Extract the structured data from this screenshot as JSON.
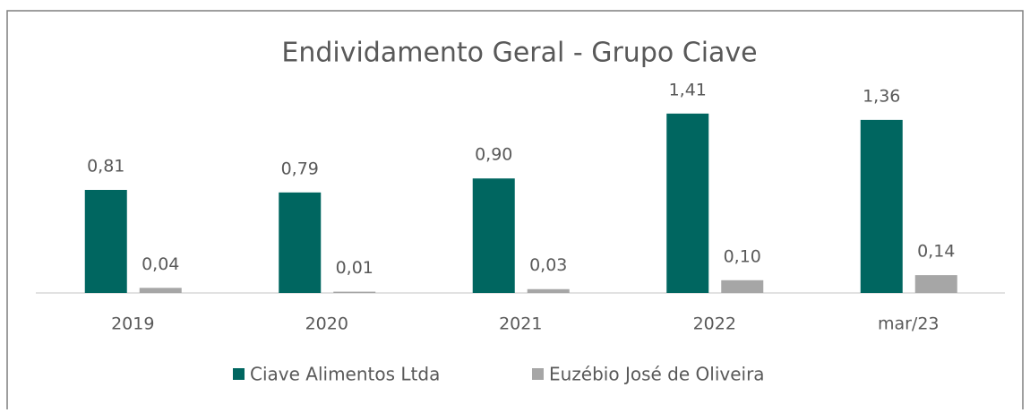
{
  "chart_data": {
    "type": "bar",
    "title": "Endividamento Geral - Grupo Ciave",
    "categories": [
      "2019",
      "2020",
      "2021",
      "2022",
      "mar/23"
    ],
    "series": [
      {
        "name": "Ciave Alimentos Ltda",
        "color": "#006660",
        "values": [
          0.81,
          0.79,
          0.9,
          1.41,
          1.36
        ],
        "value_labels": [
          "0,81",
          "0,79",
          "0,90",
          "1,41",
          "1,36"
        ]
      },
      {
        "name": "Euzébio José de Oliveira",
        "color": "#a6a6a6",
        "values": [
          0.04,
          0.01,
          0.03,
          0.1,
          0.14
        ],
        "value_labels": [
          "0,04",
          "0,01",
          "0,03",
          "0,10",
          "0,14"
        ]
      }
    ],
    "legend": "bottom"
  }
}
